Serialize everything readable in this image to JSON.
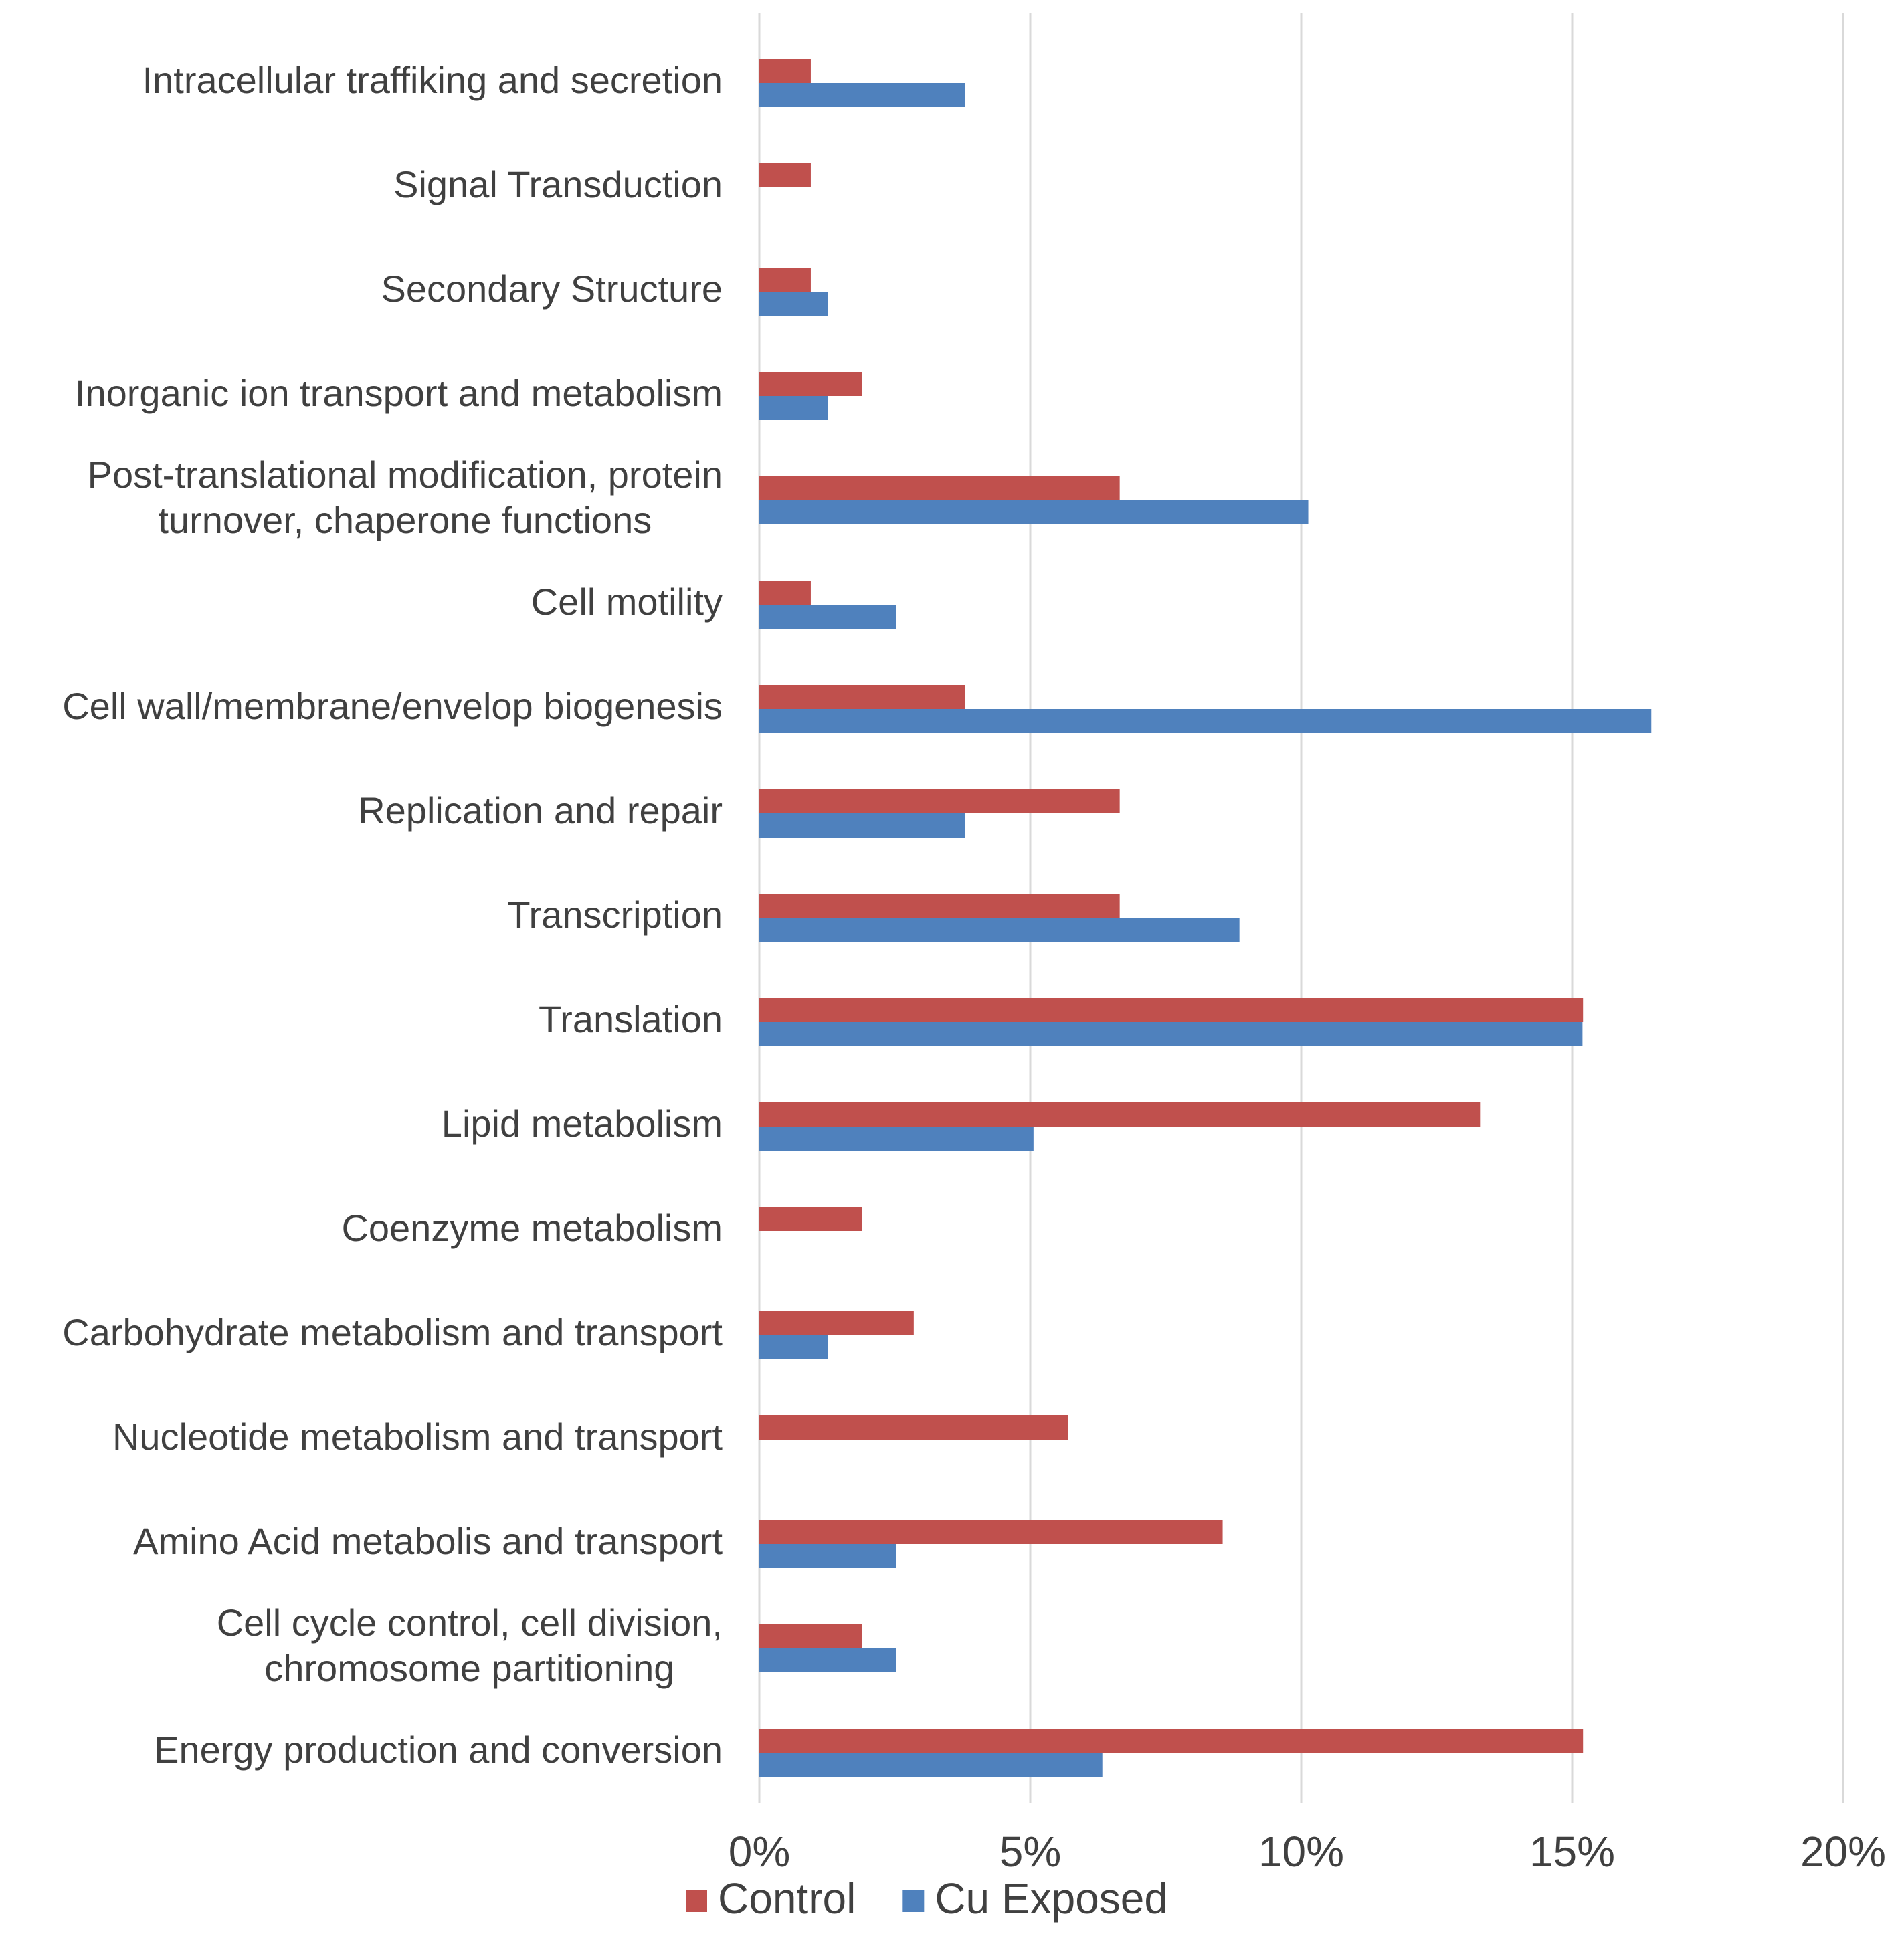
{
  "chart_data": {
    "type": "bar",
    "orientation": "horizontal",
    "title": "",
    "xlabel": "",
    "ylabel": "",
    "xlim": [
      0,
      20
    ],
    "x_ticks": [
      0,
      5,
      10,
      15,
      20
    ],
    "x_tick_labels": [
      "0%",
      "5%",
      "10%",
      "15%",
      "20%"
    ],
    "grid": true,
    "legend_position": "bottom",
    "categories": [
      [
        "Intracellular traffiking and secretion"
      ],
      [
        "Signal Transduction"
      ],
      [
        "Secondary Structure"
      ],
      [
        "Inorganic ion transport and metabolism"
      ],
      [
        "Post-translational modification, protein",
        "turnover, chaperone functions"
      ],
      [
        "Cell motility"
      ],
      [
        "Cell wall/membrane/envelop biogenesis"
      ],
      [
        "Replication and repair"
      ],
      [
        "Transcription"
      ],
      [
        "Translation"
      ],
      [
        "Lipid metabolism"
      ],
      [
        "Coenzyme metabolism"
      ],
      [
        "Carbohydrate metabolism and transport"
      ],
      [
        "Nucleotide metabolism and transport"
      ],
      [
        "Amino Acid metabolis and transport"
      ],
      [
        "Cell cycle control, cell division,",
        "chromosome partitioning"
      ],
      [
        "Energy production and conversion"
      ]
    ],
    "series": [
      {
        "name": "Control",
        "color": "#c0504d",
        "values": [
          0.95,
          0.95,
          0.95,
          1.9,
          6.65,
          0.95,
          3.8,
          6.65,
          6.65,
          15.2,
          13.3,
          1.9,
          2.85,
          5.7,
          8.55,
          1.9,
          15.2
        ]
      },
      {
        "name": "Cu Exposed",
        "color": "#4f81bd",
        "values": [
          3.8,
          0,
          1.27,
          1.27,
          10.13,
          2.53,
          16.46,
          3.8,
          8.86,
          15.19,
          5.06,
          0,
          1.27,
          0,
          2.53,
          2.53,
          6.33
        ]
      }
    ]
  }
}
